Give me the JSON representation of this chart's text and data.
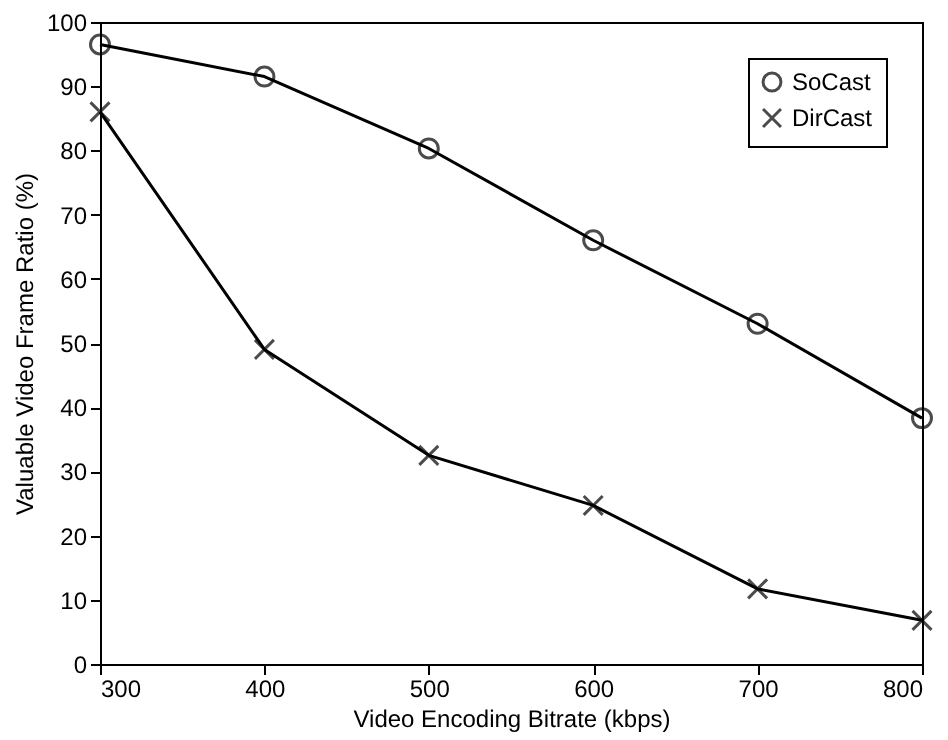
{
  "chart_data": {
    "type": "line",
    "xlabel": "Video Encoding Bitrate (kbps)",
    "ylabel": "Valuable Video Frame Ratio (%)",
    "x": [
      300,
      400,
      500,
      600,
      700,
      800
    ],
    "series": [
      {
        "name": "SoCast",
        "color": "#000000",
        "marker": "circle",
        "values": [
          96.5,
          91.5,
          80.3,
          66,
          53,
          38.3
        ]
      },
      {
        "name": "DirCast",
        "color": "#000000",
        "marker": "cross",
        "values": [
          86,
          49,
          32.5,
          24.7,
          11.7,
          6.8
        ]
      }
    ],
    "xlim": [
      300,
      800
    ],
    "xticks": [
      300,
      400,
      500,
      600,
      700,
      800
    ],
    "ylim": [
      0,
      100
    ],
    "yticks": [
      0,
      10,
      20,
      30,
      40,
      50,
      60,
      70,
      80,
      90,
      100
    ],
    "grid": false,
    "legend": "top right",
    "line_style": "solid"
  }
}
